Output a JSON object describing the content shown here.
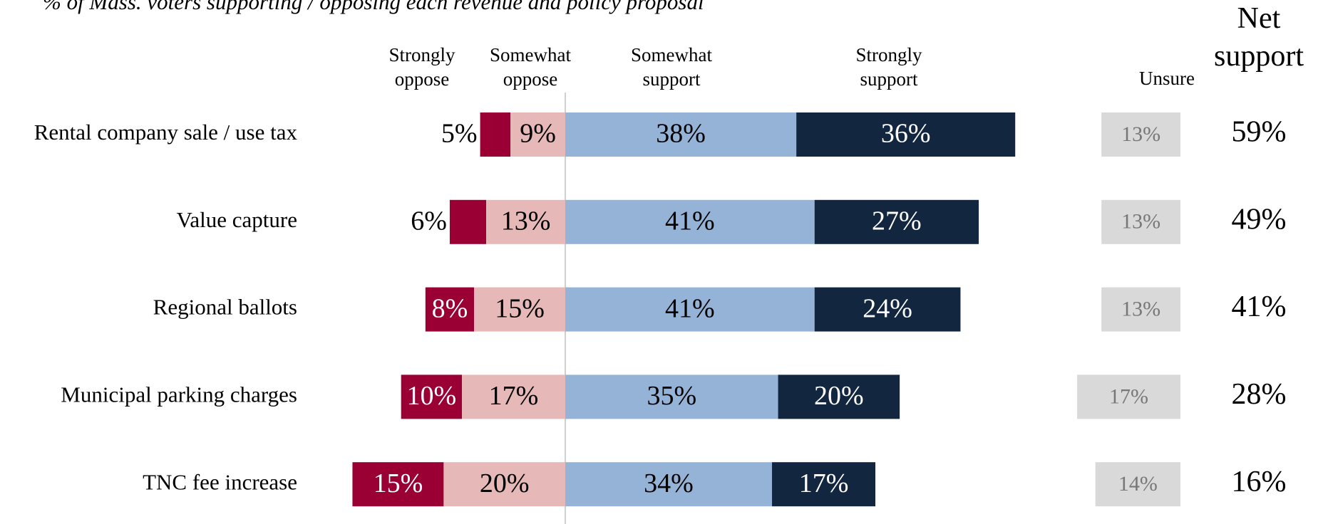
{
  "chart_data": {
    "type": "diverging_bar",
    "subtitle": "% of Mass. voters supporting / opposing each revenue and policy proposal",
    "categories": [
      "Rental company sale / use tax",
      "Value capture",
      "Regional ballots",
      "Municipal parking charges",
      "TNC fee increase"
    ],
    "series": [
      {
        "name": "Strongly oppose",
        "side": "oppose",
        "color": "#9b0034",
        "text_color": "#ffffff",
        "values": [
          5,
          6,
          8,
          10,
          15
        ],
        "value_labels": [
          "5%",
          "6%",
          "8%",
          "10%",
          "15%"
        ]
      },
      {
        "name": "Somewhat oppose",
        "side": "oppose",
        "color": "#e6b9b8",
        "text_color": "#000000",
        "values": [
          9,
          13,
          15,
          17,
          20
        ],
        "value_labels": [
          "9%",
          "13%",
          "15%",
          "17%",
          "20%"
        ]
      },
      {
        "name": "Somewhat support",
        "side": "support",
        "color": "#95b3d7",
        "text_color": "#000000",
        "values": [
          38,
          41,
          41,
          35,
          34
        ],
        "value_labels": [
          "38%",
          "41%",
          "41%",
          "35%",
          "34%"
        ]
      },
      {
        "name": "Strongly support",
        "side": "support",
        "color": "#12263f",
        "text_color": "#ffffff",
        "values": [
          36,
          27,
          24,
          20,
          17
        ],
        "value_labels": [
          "36%",
          "27%",
          "24%",
          "20%",
          "17%"
        ]
      },
      {
        "name": "Unsure",
        "side": "unsure",
        "color": "#d9d9d9",
        "text_color": "#777777",
        "values": [
          13,
          13,
          13,
          17,
          14
        ],
        "value_labels": [
          "13%",
          "13%",
          "13%",
          "17%",
          "14%"
        ]
      }
    ],
    "net_support": {
      "name": "Net support",
      "values": [
        59,
        49,
        41,
        28,
        16
      ],
      "value_labels": [
        "59%",
        "49%",
        "41%",
        "28%",
        "16%"
      ]
    }
  }
}
